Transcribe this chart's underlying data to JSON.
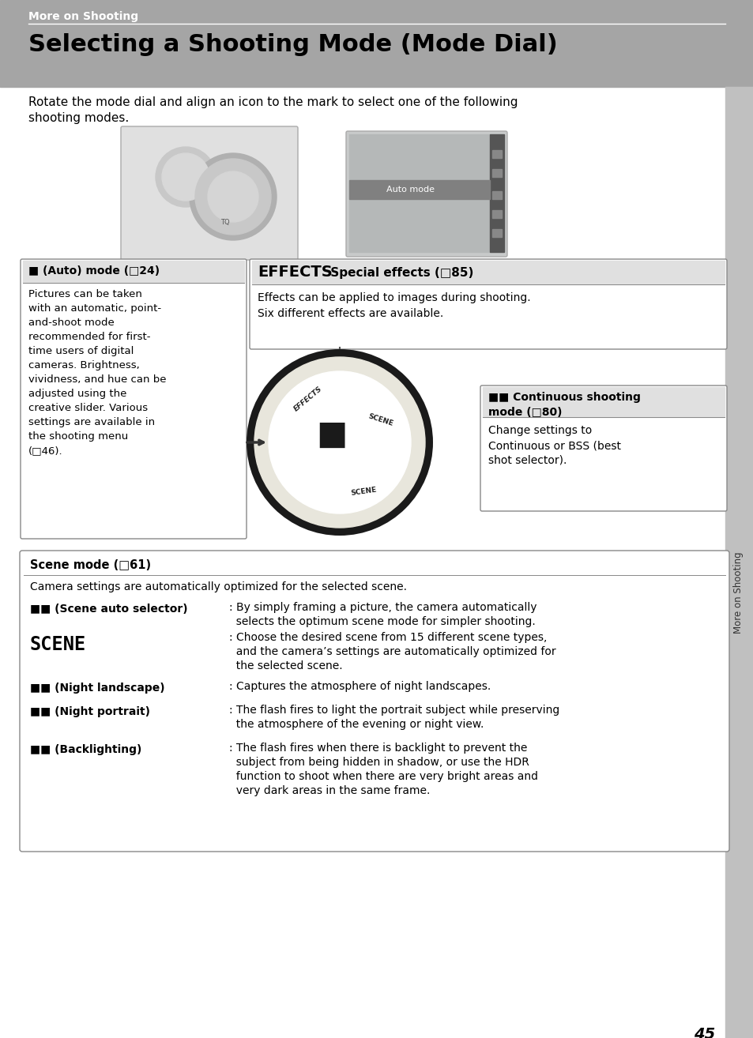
{
  "bg_color": "#ffffff",
  "header_bg": "#a5a5a5",
  "header_text": "More on Shooting",
  "title": "Selecting a Shooting Mode (Mode Dial)",
  "intro_line1": "Rotate the mode dial and align an icon to the mark to select one of the following",
  "intro_line2": "shooting modes.",
  "page_number": "45",
  "sidebar_text": "More on Shooting",
  "sidebar_bg": "#c0c0c0",
  "auto_mode_title": "■ (Auto) mode (□24)",
  "auto_mode_body": [
    "Pictures can be taken",
    "with an automatic, point-",
    "and-shoot mode",
    "recommended for first-",
    "time users of digital",
    "cameras. Brightness,",
    "vividness, and hue can be",
    "adjusted using the",
    "creative slider. Various",
    "settings are available in",
    "the shooting menu",
    "(□46)."
  ],
  "effects_title_big": "EFFECTS",
  "effects_title_rest": " Special effects (□85)",
  "effects_body": [
    "Effects can be applied to images during shooting.",
    "Six different effects are available."
  ],
  "continuous_title": "■■ Continuous shooting\nmode (□80)",
  "continuous_body": [
    "Change settings to",
    "Continuous or BSS (best",
    "shot selector)."
  ],
  "scene_title": "Scene mode (□61)",
  "scene_intro": "Camera settings are automatically optimized for the selected scene.",
  "scene_rows": [
    {
      "label": "■■ (Scene auto selector)",
      "label_size": 10,
      "label_bold": true,
      "text": [
        ": By simply framing a picture, the camera automatically",
        "  selects the optimum scene mode for simpler shooting."
      ]
    },
    {
      "label": "SCENE",
      "label_size": 17,
      "label_bold": true,
      "label_mono": true,
      "text": [
        ": Choose the desired scene from 15 different scene types,",
        "  and the camera’s settings are automatically optimized for",
        "  the selected scene."
      ]
    },
    {
      "label": "■■ (Night landscape)",
      "label_size": 10,
      "label_bold": true,
      "text": [
        ": Captures the atmosphere of night landscapes."
      ]
    },
    {
      "label": "■■ (Night portrait)",
      "label_size": 10,
      "label_bold": true,
      "text": [
        ": The flash fires to light the portrait subject while preserving",
        "  the atmosphere of the evening or night view."
      ]
    },
    {
      "label": "■■ (Backlighting)",
      "label_size": 10,
      "label_bold": true,
      "text": [
        ": The flash fires when there is backlight to prevent the",
        "  subject from being hidden in shadow, or use the HDR",
        "  function to shoot when there are very bright areas and",
        "  very dark areas in the same frame."
      ]
    }
  ]
}
